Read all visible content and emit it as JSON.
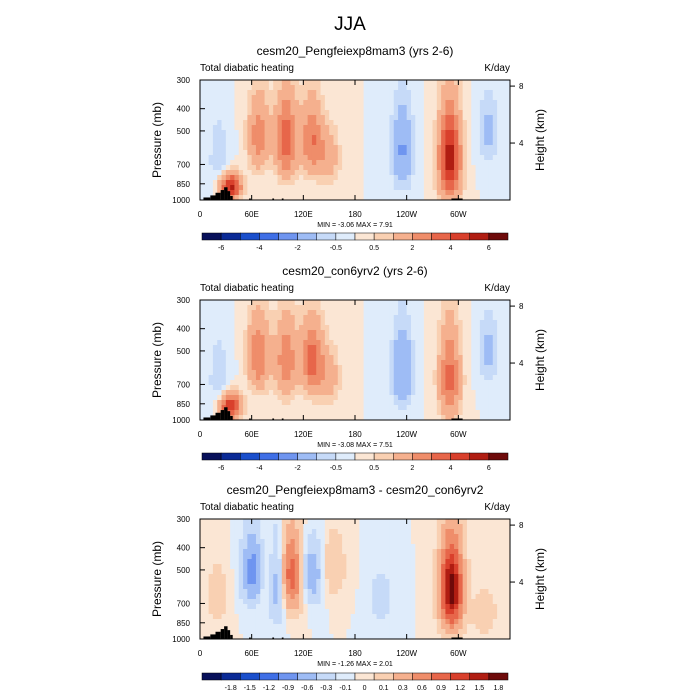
{
  "page_title": "JJA",
  "colors": {
    "blues": [
      "#08105a",
      "#0a2a96",
      "#1a4fcc",
      "#3f6fe6",
      "#6f95f0",
      "#9ebcf5",
      "#c6daf8",
      "#dfecfb"
    ],
    "reds": [
      "#fbe6d4",
      "#f9d0b2",
      "#f5b08e",
      "#ef8d6a",
      "#e7664a",
      "#d9402c",
      "#b01d12",
      "#6e0a0a"
    ],
    "topography": "#000000"
  },
  "chart_data": [
    {
      "type": "heatmap",
      "title": "cesm20_Pengfeiexp8mam3 (yrs 2-6)",
      "left_label": "Total diabatic heating",
      "right_label": "K/day",
      "ylabel": "Pressure (mb)",
      "ylabel_right": "Height (km)",
      "x_ticks": [
        "0",
        "60E",
        "120E",
        "180",
        "120W",
        "60W"
      ],
      "x_tick_values": [
        0,
        60,
        120,
        180,
        240,
        300
      ],
      "xlim": [
        0,
        360
      ],
      "y_ticks": [
        "300",
        "400",
        "500",
        "700",
        "850",
        "1000"
      ],
      "y_tick_values": [
        300,
        400,
        500,
        700,
        850,
        1000
      ],
      "ylim": [
        1000,
        300
      ],
      "height_ticks": [
        "8",
        "4"
      ],
      "height_values": [
        8,
        4
      ],
      "stats": "MIN = -3.06  MAX =  7.91",
      "colorbar_labels": [
        "-6",
        "-4",
        "-2",
        "-0.5",
        "0.5",
        "2",
        "4",
        "6"
      ],
      "colorbar_levels": [
        -7,
        -6,
        -5,
        -4,
        -3,
        -2,
        -1,
        -0.5,
        0,
        0.5,
        1,
        2,
        3,
        4,
        5,
        6,
        7
      ],
      "features": [
        {
          "lon": 22,
          "p_top": 350,
          "p_bot": 1000,
          "value": -0.9
        },
        {
          "lon": 35,
          "p_top": 750,
          "p_bot": 1000,
          "value": 5.5
        },
        {
          "lon": 68,
          "p_top": 300,
          "p_bot": 750,
          "value": 2.6
        },
        {
          "lon": 100,
          "p_top": 300,
          "p_bot": 800,
          "value": 3.8
        },
        {
          "lon": 130,
          "p_top": 320,
          "p_bot": 780,
          "value": 3.0
        },
        {
          "lon": 150,
          "p_top": 450,
          "p_bot": 850,
          "value": 1.6
        },
        {
          "lon": 235,
          "p_top": 320,
          "p_bot": 900,
          "value": -2.1
        },
        {
          "lon": 290,
          "p_top": 330,
          "p_bot": 1000,
          "value": 5.6
        },
        {
          "lon": 335,
          "p_top": 300,
          "p_bot": 700,
          "value": -1.2
        }
      ]
    },
    {
      "type": "heatmap",
      "title": "cesm20_con6yrv2 (yrs 2-6)",
      "left_label": "Total diabatic heating",
      "right_label": "K/day",
      "ylabel": "Pressure (mb)",
      "ylabel_right": "Height (km)",
      "x_ticks": [
        "0",
        "60E",
        "120E",
        "180",
        "120W",
        "60W"
      ],
      "x_tick_values": [
        0,
        60,
        120,
        180,
        240,
        300
      ],
      "xlim": [
        0,
        360
      ],
      "y_ticks": [
        "300",
        "400",
        "500",
        "700",
        "850",
        "1000"
      ],
      "y_tick_values": [
        300,
        400,
        500,
        700,
        850,
        1000
      ],
      "ylim": [
        1000,
        300
      ],
      "height_ticks": [
        "8",
        "4"
      ],
      "height_values": [
        8,
        4
      ],
      "stats": "MIN = -3.08  MAX =  7.51",
      "colorbar_labels": [
        "-6",
        "-4",
        "-2",
        "-0.5",
        "0.5",
        "2",
        "4",
        "6"
      ],
      "colorbar_levels": [
        -7,
        -6,
        -5,
        -4,
        -3,
        -2,
        -1,
        -0.5,
        0,
        0.5,
        1,
        2,
        3,
        4,
        5,
        6,
        7
      ],
      "features": [
        {
          "lon": 22,
          "p_top": 350,
          "p_bot": 1000,
          "value": -0.9
        },
        {
          "lon": 35,
          "p_top": 750,
          "p_bot": 1000,
          "value": 5.0
        },
        {
          "lon": 68,
          "p_top": 300,
          "p_bot": 750,
          "value": 3.0
        },
        {
          "lon": 100,
          "p_top": 300,
          "p_bot": 800,
          "value": 2.8
        },
        {
          "lon": 130,
          "p_top": 320,
          "p_bot": 780,
          "value": 3.4
        },
        {
          "lon": 150,
          "p_top": 450,
          "p_bot": 850,
          "value": 1.6
        },
        {
          "lon": 235,
          "p_top": 320,
          "p_bot": 900,
          "value": -2.0
        },
        {
          "lon": 290,
          "p_top": 330,
          "p_bot": 1000,
          "value": 3.4
        },
        {
          "lon": 335,
          "p_top": 300,
          "p_bot": 700,
          "value": -1.2
        }
      ]
    },
    {
      "type": "heatmap",
      "title": "cesm20_Pengfeiexp8mam3 - cesm20_con6yrv2",
      "left_label": "Total diabatic heating",
      "right_label": "K/day",
      "ylabel": "Pressure (mb)",
      "ylabel_right": "Height (km)",
      "x_ticks": [
        "0",
        "60E",
        "120E",
        "180",
        "120W",
        "60W"
      ],
      "x_tick_values": [
        0,
        60,
        120,
        180,
        240,
        300
      ],
      "xlim": [
        0,
        360
      ],
      "y_ticks": [
        "300",
        "400",
        "500",
        "700",
        "850",
        "1000"
      ],
      "y_tick_values": [
        300,
        400,
        500,
        700,
        850,
        1000
      ],
      "ylim": [
        1000,
        300
      ],
      "height_ticks": [
        "8",
        "4"
      ],
      "height_values": [
        8,
        4
      ],
      "stats": "MIN = -1.26  MAX =  2.01",
      "colorbar_labels": [
        "-1.8",
        "-1.5",
        "-1.2",
        "-0.9",
        "-0.6",
        "-0.3",
        "-0.1",
        "0",
        "0.1",
        "0.3",
        "0.6",
        "0.9",
        "1.2",
        "1.5",
        "1.8"
      ],
      "colorbar_levels": [
        -2.1,
        -1.8,
        -1.5,
        -1.2,
        -0.9,
        -0.6,
        -0.3,
        -0.1,
        0,
        0.1,
        0.3,
        0.6,
        0.9,
        1.2,
        1.5,
        1.8,
        2.1
      ],
      "features": [
        {
          "lon": 20,
          "p_top": 400,
          "p_bot": 900,
          "value": 0.2
        },
        {
          "lon": 62,
          "p_top": 320,
          "p_bot": 700,
          "value": -0.8
        },
        {
          "lon": 80,
          "p_top": 330,
          "p_bot": 750,
          "value": 0.5
        },
        {
          "lon": 90,
          "p_top": 320,
          "p_bot": 800,
          "value": -0.9
        },
        {
          "lon": 105,
          "p_top": 310,
          "p_bot": 750,
          "value": 1.3
        },
        {
          "lon": 130,
          "p_top": 350,
          "p_bot": 700,
          "value": -0.5
        },
        {
          "lon": 155,
          "p_top": 320,
          "p_bot": 650,
          "value": 0.3
        },
        {
          "lon": 210,
          "p_top": 450,
          "p_bot": 900,
          "value": -0.2
        },
        {
          "lon": 292,
          "p_top": 320,
          "p_bot": 900,
          "value": 2.0
        },
        {
          "lon": 330,
          "p_top": 600,
          "p_bot": 950,
          "value": 0.3
        }
      ]
    }
  ]
}
